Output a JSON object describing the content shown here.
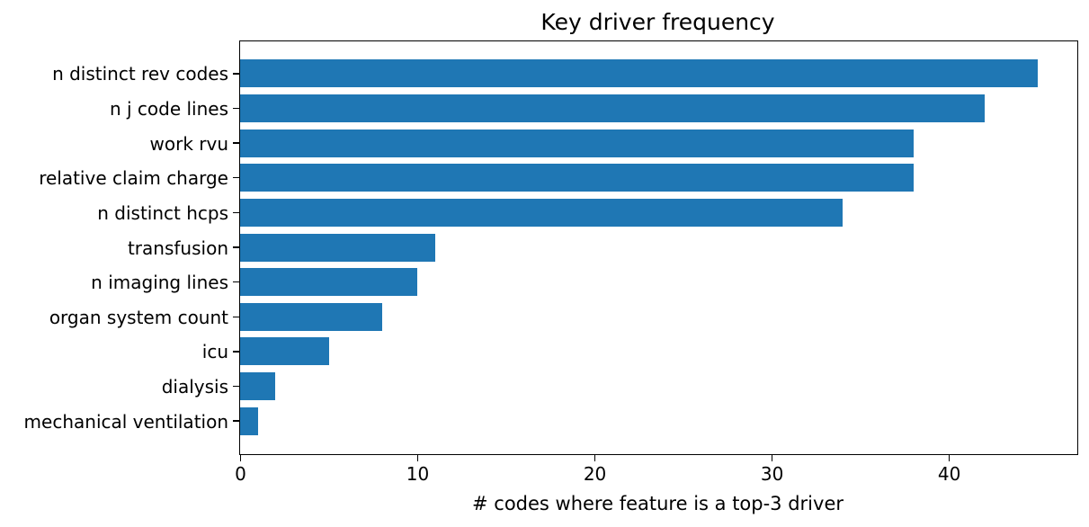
{
  "chart_data": {
    "type": "bar",
    "orientation": "horizontal",
    "title": "Key driver frequency",
    "xlabel": "# codes where feature is a top-3 driver",
    "ylabel": "",
    "categories": [
      "n distinct rev codes",
      "n j code lines",
      "work rvu",
      "relative claim charge",
      "n distinct hcps",
      "transfusion",
      "n imaging lines",
      "organ system count",
      "icu",
      "dialysis",
      "mechanical ventilation"
    ],
    "values": [
      45,
      42,
      38,
      38,
      34,
      11,
      10,
      8,
      5,
      2,
      1
    ],
    "xticks": [
      0,
      10,
      20,
      30,
      40
    ],
    "xlim": [
      0,
      47.25
    ],
    "bar_color": "#1f77b4",
    "text_color": "#000000",
    "spine_color": "#000000",
    "background_color": "#ffffff",
    "grid": false,
    "legend": null
  }
}
